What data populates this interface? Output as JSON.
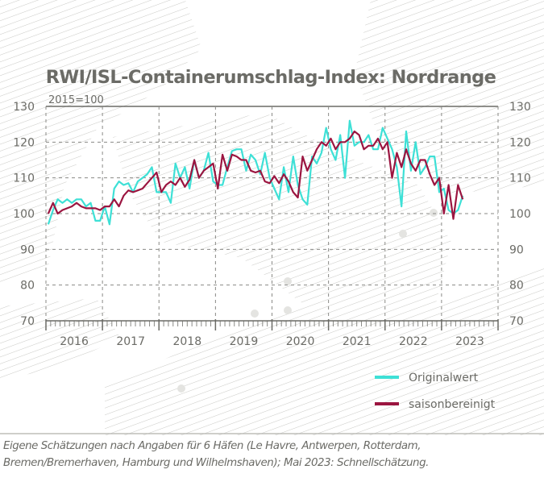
{
  "chart_data": {
    "type": "line",
    "title": "RWI/ISL-Containerumschlag-Index: Nordrange",
    "subtitle": "2015=100",
    "x_start": "2016-01",
    "x_end": "2023-05",
    "x_frequency": "monthly",
    "xtick_labels": [
      "2016",
      "2017",
      "2018",
      "2019",
      "2020",
      "2021",
      "2022",
      "2023"
    ],
    "ylim": [
      70,
      130
    ],
    "yticks": [
      70,
      80,
      90,
      100,
      110,
      120,
      130
    ],
    "grid": true,
    "legend_position": "bottom-right",
    "series": [
      {
        "name": "Originalwert",
        "color": "#3ee0d6",
        "values": [
          97,
          101,
          104,
          103,
          104,
          103,
          104,
          104,
          102,
          103,
          98,
          98,
          102,
          97,
          107,
          109,
          108,
          108.5,
          106,
          109,
          110,
          111,
          113,
          106,
          106,
          106,
          103,
          114,
          110,
          113,
          107,
          115,
          110,
          112,
          117,
          109,
          108,
          108,
          113,
          117.5,
          118,
          118,
          112,
          116.5,
          115,
          111,
          117,
          110,
          107,
          104,
          113,
          106,
          116,
          108,
          104,
          102.5,
          116,
          114,
          117,
          124,
          118,
          115,
          122,
          110,
          126,
          119,
          120,
          120,
          122,
          118,
          118,
          124,
          121,
          118,
          113,
          102,
          123,
          112,
          120,
          111,
          113,
          116,
          116,
          106,
          107,
          101,
          100,
          101,
          105
        ]
      },
      {
        "name": "saisonbereinigt",
        "color": "#9b1540",
        "values": [
          100,
          103,
          100,
          101,
          101.5,
          102,
          103,
          102,
          101.5,
          101.5,
          101.5,
          101,
          102,
          102,
          104,
          102,
          105,
          106.5,
          106,
          106.5,
          107,
          108.5,
          110,
          111.5,
          106,
          108,
          109,
          108,
          110,
          107.5,
          109.5,
          115,
          110,
          112,
          113,
          114,
          107,
          116.5,
          112,
          116.5,
          116,
          115,
          115,
          112,
          111.5,
          112,
          109,
          108.5,
          110.5,
          108.5,
          111,
          109,
          106,
          104.5,
          116,
          112,
          115,
          118,
          120,
          119,
          121,
          118,
          120,
          120,
          121,
          123,
          122,
          118,
          119,
          119,
          121,
          118,
          120,
          110,
          117,
          113,
          118,
          114,
          112,
          115,
          115,
          111,
          108,
          110,
          100,
          108,
          98.5,
          108,
          104
        ]
      }
    ]
  },
  "caption": {
    "line1": "Eigene Schätzungen nach Angaben für 6 Häfen (Le Havre, Antwerpen, Rotterdam,",
    "line2": "Bremen/Bremerhaven, Hamburg und Wilhelmshaven); Mai 2023: Schnellschätzung."
  }
}
